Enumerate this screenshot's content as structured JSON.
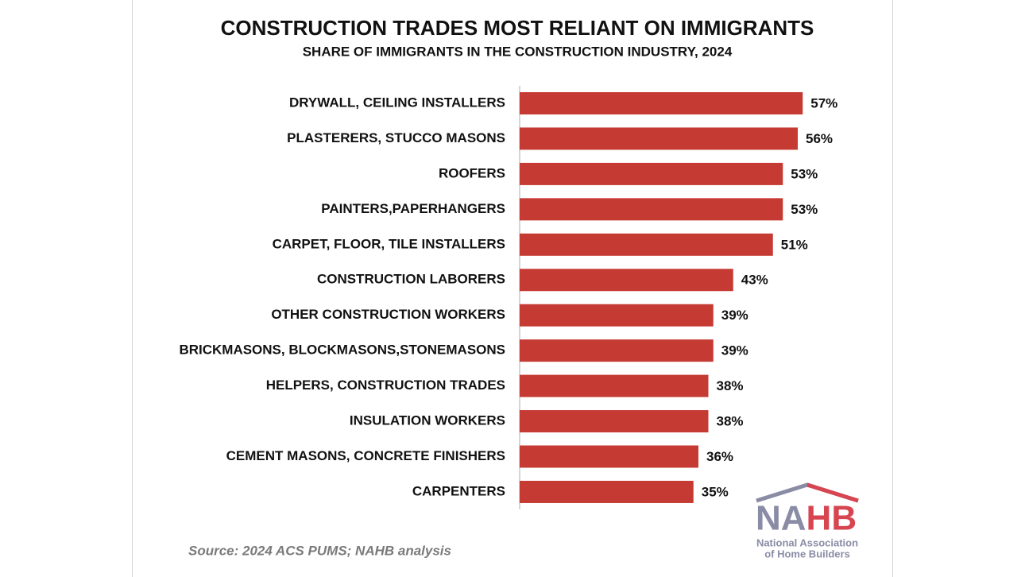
{
  "chart_data": {
    "type": "bar",
    "orientation": "horizontal",
    "title": "CONSTRUCTION TRADES MOST RELIANT ON IMMIGRANTS",
    "subtitle": "SHARE OF IMMIGRANTS IN THE CONSTRUCTION INDUSTRY, 2024",
    "categories": [
      "DRYWALL, CEILING INSTALLERS",
      "PLASTERERS, STUCCO MASONS",
      "ROOFERS",
      "PAINTERS,PAPERHANGERS",
      "CARPET, FLOOR, TILE INSTALLERS",
      "CONSTRUCTION LABORERS",
      "OTHER CONSTRUCTION WORKERS",
      "BRICKMASONS, BLOCKMASONS,STONEMASONS",
      "HELPERS, CONSTRUCTION TRADES",
      "INSULATION WORKERS",
      "CEMENT MASONS, CONCRETE FINISHERS",
      "CARPENTERS"
    ],
    "values": [
      57,
      56,
      53,
      53,
      51,
      43,
      39,
      39,
      38,
      38,
      36,
      35
    ],
    "value_labels": [
      "57%",
      "56%",
      "53%",
      "53%",
      "51%",
      "43%",
      "39%",
      "39%",
      "38%",
      "38%",
      "36%",
      "35%"
    ],
    "color": "#c53a32",
    "source": "Source: 2024 ACS PUMS; NAHB analysis",
    "logo": {
      "mark": "NAHB",
      "line1": "National Association",
      "line2": "of Home Builders"
    }
  }
}
